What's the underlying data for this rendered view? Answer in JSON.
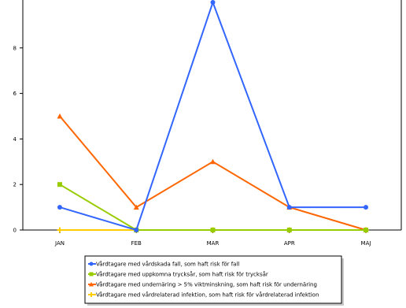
{
  "chart_data": {
    "type": "line",
    "categories": [
      "JAN",
      "FEB",
      "MAR",
      "APR",
      "MAJ"
    ],
    "ylim": [
      0,
      10
    ],
    "yticks": [
      0,
      2,
      4,
      6,
      8
    ],
    "grid": false,
    "legend_position": "bottom-center",
    "series": [
      {
        "name": "Vårdtagare med vårdskada fall, som haft risk för fall",
        "color": "#3366ff",
        "marker": "circle",
        "values": [
          1,
          0,
          10,
          1,
          1
        ]
      },
      {
        "name": "Vårdtagare med uppkomna trycksår, som haft risk för trycksår",
        "color": "#99cc00",
        "marker": "square",
        "values": [
          2,
          0,
          0,
          0,
          0
        ]
      },
      {
        "name": "Vårdtagare med undernäring > 5% viktminskning, som haft risk för undernäring",
        "color": "#ff6600",
        "marker": "triangle",
        "values": [
          5,
          1,
          3,
          1,
          0
        ]
      },
      {
        "name": "Vårdtagare med vårdrelaterad infektion, som haft risk för vårdrelaterad infektion",
        "color": "#ffcc00",
        "marker": "plus",
        "values": [
          0,
          0,
          0,
          0,
          0
        ]
      }
    ]
  }
}
